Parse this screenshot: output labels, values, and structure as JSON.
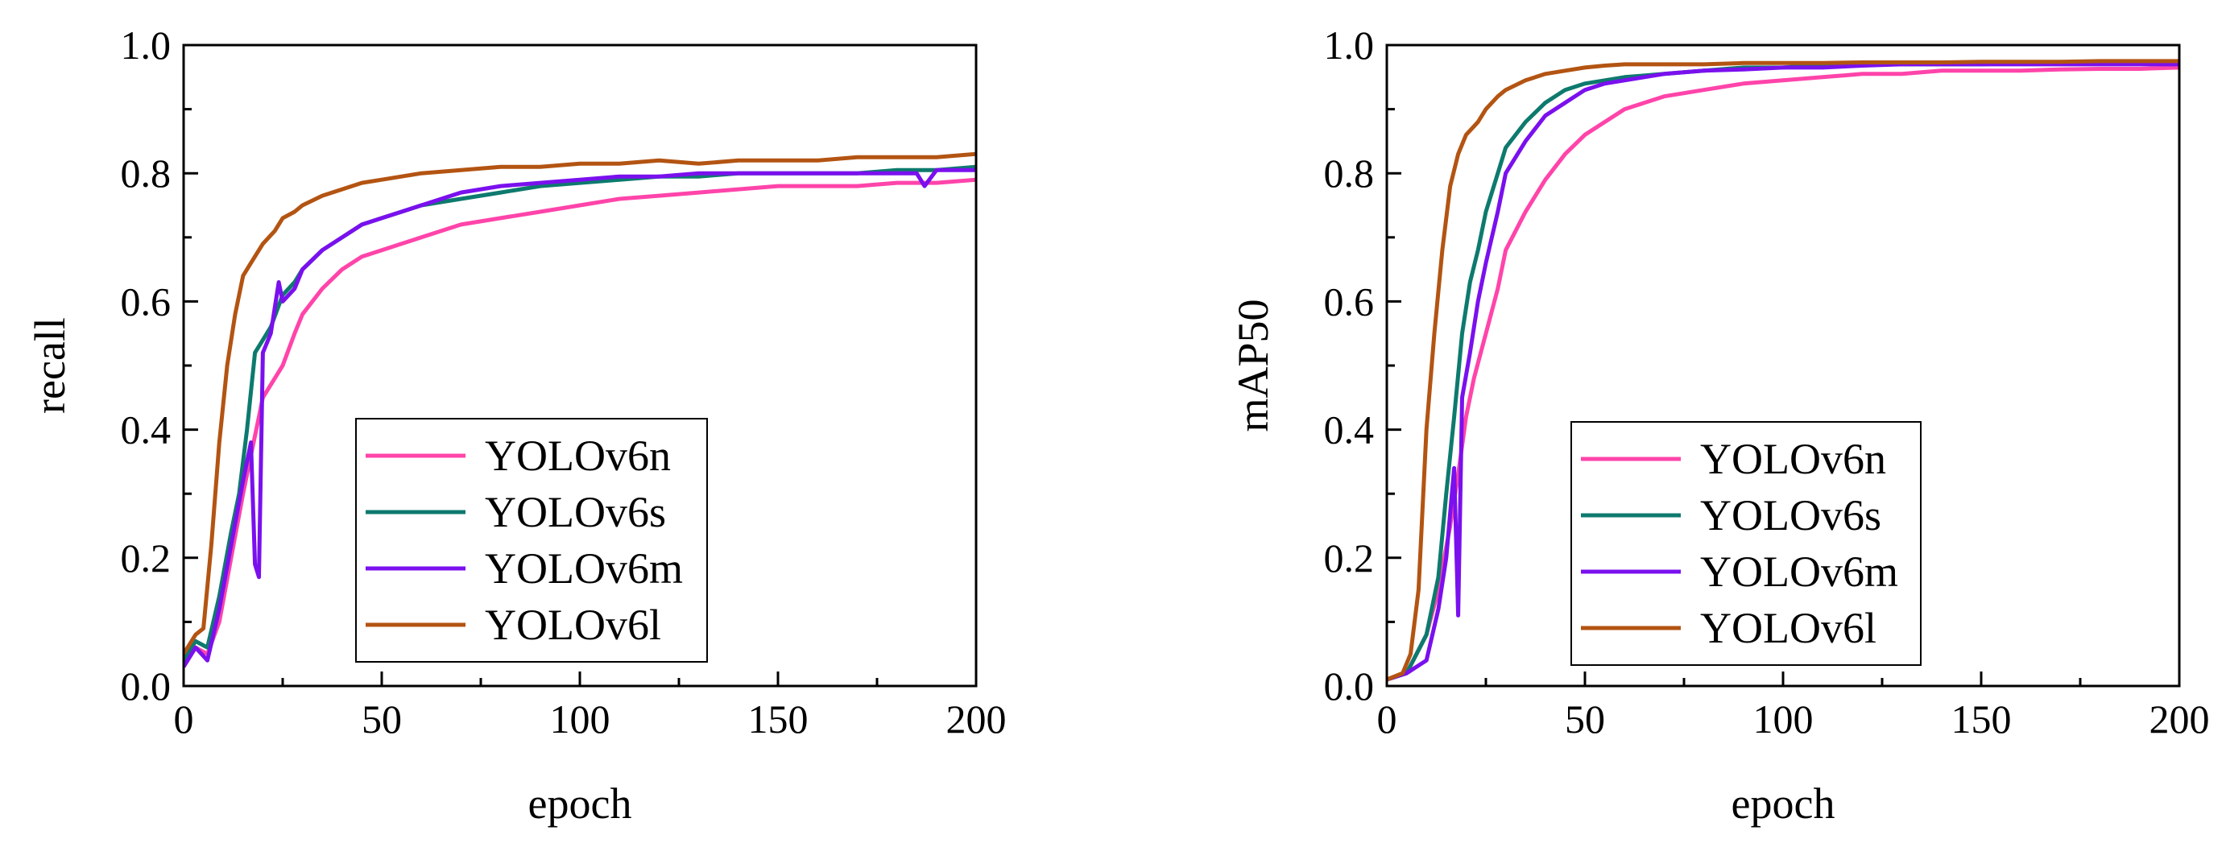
{
  "chart_data": [
    {
      "type": "line",
      "xlabel": "epoch",
      "ylabel": "recall",
      "xlim": [
        0,
        200
      ],
      "ylim": [
        0,
        1.0
      ],
      "xticks": [
        "0",
        "50",
        "100",
        "150",
        "200"
      ],
      "yticks": [
        "0.0",
        "0.2",
        "0.4",
        "0.6",
        "0.8",
        "1.0"
      ],
      "legend_position": "bottom-center",
      "series": [
        {
          "name": "YOLOv6n",
          "color": "#ff44aa",
          "x": [
            0,
            3,
            6,
            9,
            12,
            15,
            17,
            19,
            20,
            22,
            25,
            28,
            30,
            35,
            40,
            45,
            50,
            55,
            60,
            70,
            80,
            90,
            100,
            110,
            120,
            130,
            140,
            150,
            160,
            170,
            180,
            190,
            200
          ],
          "y": [
            0.03,
            0.06,
            0.05,
            0.1,
            0.2,
            0.3,
            0.36,
            0.42,
            0.45,
            0.47,
            0.5,
            0.55,
            0.58,
            0.62,
            0.65,
            0.67,
            0.68,
            0.69,
            0.7,
            0.72,
            0.73,
            0.74,
            0.75,
            0.76,
            0.765,
            0.77,
            0.775,
            0.78,
            0.78,
            0.78,
            0.785,
            0.785,
            0.79
          ]
        },
        {
          "name": "YOLOv6s",
          "color": "#0d7a6e",
          "x": [
            0,
            3,
            6,
            9,
            12,
            14,
            16,
            18,
            20,
            22,
            25,
            28,
            30,
            35,
            40,
            45,
            50,
            55,
            60,
            70,
            80,
            90,
            100,
            110,
            120,
            130,
            140,
            150,
            160,
            170,
            180,
            190,
            200
          ],
          "y": [
            0.04,
            0.07,
            0.06,
            0.14,
            0.24,
            0.3,
            0.4,
            0.52,
            0.54,
            0.56,
            0.61,
            0.63,
            0.65,
            0.68,
            0.7,
            0.72,
            0.73,
            0.74,
            0.75,
            0.76,
            0.77,
            0.78,
            0.785,
            0.79,
            0.795,
            0.795,
            0.8,
            0.8,
            0.8,
            0.8,
            0.805,
            0.805,
            0.81
          ]
        },
        {
          "name": "YOLOv6m",
          "color": "#7a10ee",
          "x": [
            0,
            3,
            6,
            9,
            12,
            15,
            17,
            18,
            19,
            20,
            22,
            24,
            25,
            28,
            30,
            35,
            40,
            45,
            50,
            60,
            70,
            80,
            90,
            100,
            110,
            120,
            130,
            140,
            150,
            160,
            170,
            180,
            185,
            187,
            190,
            200
          ],
          "y": [
            0.03,
            0.06,
            0.04,
            0.12,
            0.22,
            0.32,
            0.38,
            0.19,
            0.17,
            0.52,
            0.55,
            0.63,
            0.6,
            0.62,
            0.65,
            0.68,
            0.7,
            0.72,
            0.73,
            0.75,
            0.77,
            0.78,
            0.785,
            0.79,
            0.795,
            0.795,
            0.8,
            0.8,
            0.8,
            0.8,
            0.8,
            0.8,
            0.8,
            0.78,
            0.805,
            0.805
          ]
        },
        {
          "name": "YOLOv6l",
          "color": "#b35412",
          "x": [
            0,
            3,
            5,
            7,
            9,
            11,
            13,
            15,
            17,
            20,
            23,
            25,
            28,
            30,
            35,
            40,
            45,
            50,
            60,
            70,
            80,
            90,
            100,
            110,
            120,
            130,
            140,
            150,
            160,
            170,
            180,
            190,
            200
          ],
          "y": [
            0.05,
            0.08,
            0.09,
            0.22,
            0.38,
            0.5,
            0.58,
            0.64,
            0.66,
            0.69,
            0.71,
            0.73,
            0.74,
            0.75,
            0.765,
            0.775,
            0.785,
            0.79,
            0.8,
            0.805,
            0.81,
            0.81,
            0.815,
            0.815,
            0.82,
            0.815,
            0.82,
            0.82,
            0.82,
            0.825,
            0.825,
            0.825,
            0.83
          ]
        }
      ]
    },
    {
      "type": "line",
      "xlabel": "epoch",
      "ylabel": "mAP50",
      "xlim": [
        0,
        200
      ],
      "ylim": [
        0,
        1.0
      ],
      "xticks": [
        "0",
        "50",
        "100",
        "150",
        "200"
      ],
      "yticks": [
        "0.0",
        "0.2",
        "0.4",
        "0.6",
        "0.8",
        "1.0"
      ],
      "legend_position": "bottom-center",
      "series": [
        {
          "name": "YOLOv6n",
          "color": "#ff44aa",
          "x": [
            0,
            5,
            10,
            13,
            16,
            18,
            20,
            22,
            25,
            28,
            30,
            35,
            40,
            45,
            50,
            55,
            60,
            70,
            80,
            90,
            100,
            110,
            120,
            130,
            140,
            150,
            160,
            170,
            180,
            190,
            200
          ],
          "y": [
            0.01,
            0.02,
            0.08,
            0.15,
            0.25,
            0.33,
            0.42,
            0.48,
            0.55,
            0.62,
            0.68,
            0.74,
            0.79,
            0.83,
            0.86,
            0.88,
            0.9,
            0.92,
            0.93,
            0.94,
            0.945,
            0.95,
            0.955,
            0.955,
            0.96,
            0.96,
            0.96,
            0.962,
            0.963,
            0.963,
            0.965
          ]
        },
        {
          "name": "YOLOv6s",
          "color": "#0d7a6e",
          "x": [
            0,
            5,
            10,
            13,
            15,
            17,
            19,
            21,
            23,
            25,
            28,
            30,
            35,
            40,
            45,
            50,
            55,
            60,
            70,
            80,
            90,
            100,
            110,
            120,
            130,
            140,
            150,
            160,
            170,
            180,
            190,
            200
          ],
          "y": [
            0.01,
            0.02,
            0.08,
            0.17,
            0.3,
            0.42,
            0.55,
            0.63,
            0.68,
            0.74,
            0.8,
            0.84,
            0.88,
            0.91,
            0.93,
            0.94,
            0.945,
            0.95,
            0.955,
            0.96,
            0.965,
            0.965,
            0.97,
            0.97,
            0.97,
            0.97,
            0.97,
            0.972,
            0.972,
            0.972,
            0.972,
            0.975
          ]
        },
        {
          "name": "YOLOv6m",
          "color": "#7a10ee",
          "x": [
            0,
            5,
            10,
            13,
            15,
            17,
            18,
            19,
            21,
            23,
            25,
            28,
            30,
            35,
            40,
            45,
            50,
            55,
            60,
            70,
            80,
            90,
            100,
            110,
            120,
            130,
            140,
            150,
            160,
            170,
            180,
            190,
            200
          ],
          "y": [
            0.01,
            0.02,
            0.04,
            0.12,
            0.2,
            0.34,
            0.11,
            0.45,
            0.52,
            0.6,
            0.66,
            0.74,
            0.8,
            0.85,
            0.89,
            0.91,
            0.93,
            0.94,
            0.945,
            0.955,
            0.96,
            0.962,
            0.965,
            0.965,
            0.968,
            0.97,
            0.97,
            0.97,
            0.97,
            0.97,
            0.97,
            0.97,
            0.97
          ]
        },
        {
          "name": "YOLOv6l",
          "color": "#b35412",
          "x": [
            0,
            4,
            6,
            8,
            10,
            12,
            14,
            16,
            18,
            20,
            23,
            25,
            28,
            30,
            35,
            40,
            45,
            50,
            55,
            60,
            70,
            80,
            90,
            100,
            110,
            120,
            130,
            140,
            150,
            160,
            170,
            180,
            190,
            200
          ],
          "y": [
            0.01,
            0.02,
            0.05,
            0.15,
            0.4,
            0.55,
            0.68,
            0.78,
            0.83,
            0.86,
            0.88,
            0.9,
            0.92,
            0.93,
            0.945,
            0.955,
            0.96,
            0.965,
            0.968,
            0.97,
            0.97,
            0.97,
            0.972,
            0.972,
            0.972,
            0.973,
            0.973,
            0.973,
            0.974,
            0.974,
            0.974,
            0.975,
            0.975,
            0.975
          ]
        }
      ]
    }
  ]
}
